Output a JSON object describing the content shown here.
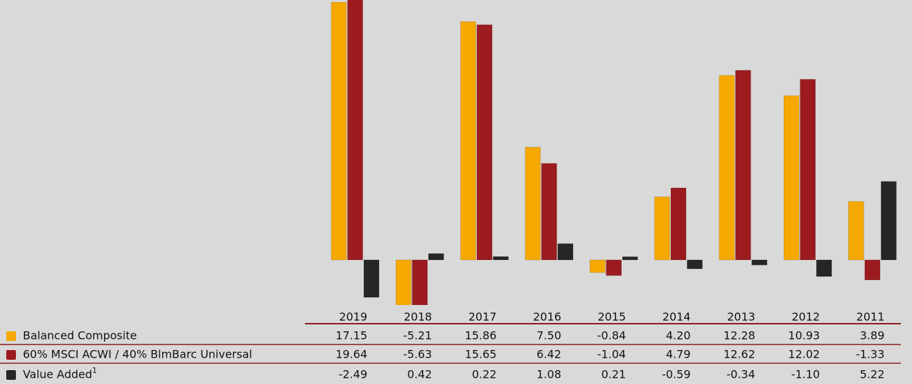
{
  "chart_data": {
    "type": "bar",
    "categories": [
      "2019",
      "2018",
      "2017",
      "2016",
      "2015",
      "2014",
      "2013",
      "2012",
      "2011"
    ],
    "ylim": [
      -3,
      17.3
    ],
    "series": [
      {
        "name": "Balanced Composite",
        "color": "#f5a800",
        "values": [
          17.15,
          -5.21,
          15.86,
          7.5,
          -0.84,
          4.2,
          12.28,
          10.93,
          3.89
        ],
        "value_labels": [
          "17.15",
          "-5.21",
          "15.86",
          "7.50",
          "-0.84",
          "4.20",
          "12.28",
          "10.93",
          "3.89"
        ]
      },
      {
        "name": "60% MSCI ACWI / 40% BlmBarc Universal",
        "color": "#9b1b1e",
        "values": [
          19.64,
          -5.63,
          15.65,
          6.42,
          -1.04,
          4.79,
          12.62,
          12.02,
          -1.33
        ],
        "value_labels": [
          "19.64",
          "-5.63",
          "15.65",
          "6.42",
          "-1.04",
          "4.79",
          "12.62",
          "12.02",
          "-1.33"
        ]
      },
      {
        "name": "Value Added",
        "footnote": "1",
        "color": "#262626",
        "values": [
          -2.49,
          0.42,
          0.22,
          1.08,
          0.21,
          -0.59,
          -0.34,
          -1.1,
          5.22
        ],
        "value_labels": [
          "-2.49",
          "0.42",
          "0.22",
          "1.08",
          "0.21",
          "-0.59",
          "-0.34",
          "-1.10",
          "5.22"
        ]
      }
    ]
  }
}
